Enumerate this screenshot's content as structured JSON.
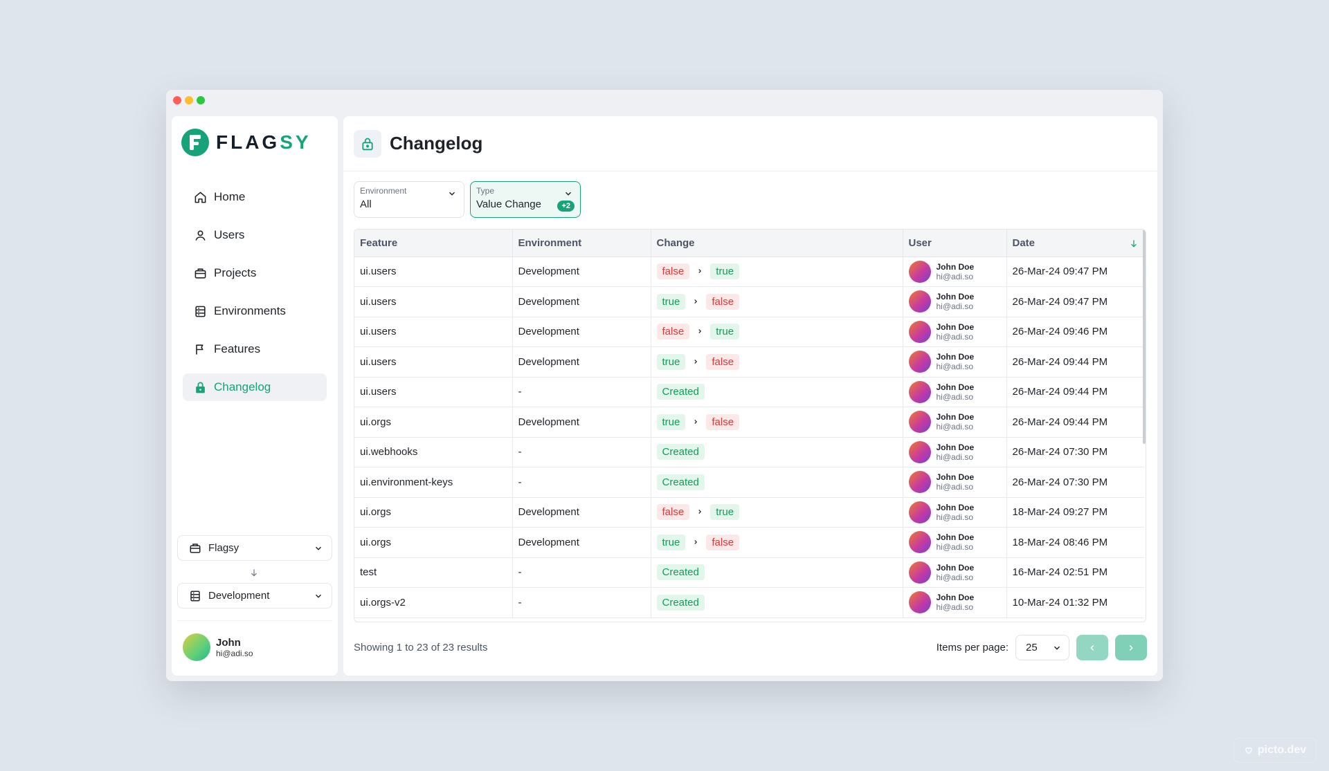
{
  "window": {
    "dots": [
      "#ff5f57",
      "#febc2e",
      "#28c840"
    ]
  },
  "brand": {
    "name_part1": "FLAG",
    "name_part2": "SY",
    "color": "#16a37a"
  },
  "sidebar": {
    "items": [
      {
        "label": "Home",
        "icon": "home-icon"
      },
      {
        "label": "Users",
        "icon": "user-icon"
      },
      {
        "label": "Projects",
        "icon": "briefcase-icon"
      },
      {
        "label": "Environments",
        "icon": "server-icon"
      },
      {
        "label": "Features",
        "icon": "flag-icon"
      },
      {
        "label": "Changelog",
        "icon": "lock-icon",
        "active": true
      }
    ],
    "project_selector": {
      "value": "Flagsy",
      "icon": "briefcase-icon"
    },
    "environment_selector": {
      "value": "Development",
      "icon": "server-icon"
    },
    "user": {
      "name": "John",
      "email": "hi@adi.so"
    }
  },
  "header": {
    "title": "Changelog",
    "icon": "lock-icon"
  },
  "filters": {
    "environment": {
      "label": "Environment",
      "value": "All"
    },
    "type": {
      "label": "Type",
      "value": "Value Change",
      "extra_count": "+2"
    }
  },
  "table": {
    "columns": [
      "Feature",
      "Environment",
      "Change",
      "User",
      "Date"
    ],
    "sort_column": "Date",
    "sort_direction": "desc",
    "rows": [
      {
        "feature": "ui.users",
        "environment": "Development",
        "change_type": "value",
        "from": "false",
        "to": "true",
        "user_name": "John Doe",
        "user_email": "hi@adi.so",
        "date": "26-Mar-24 09:47 PM"
      },
      {
        "feature": "ui.users",
        "environment": "Development",
        "change_type": "value",
        "from": "true",
        "to": "false",
        "user_name": "John Doe",
        "user_email": "hi@adi.so",
        "date": "26-Mar-24 09:47 PM"
      },
      {
        "feature": "ui.users",
        "environment": "Development",
        "change_type": "value",
        "from": "false",
        "to": "true",
        "user_name": "John Doe",
        "user_email": "hi@adi.so",
        "date": "26-Mar-24 09:46 PM"
      },
      {
        "feature": "ui.users",
        "environment": "Development",
        "change_type": "value",
        "from": "true",
        "to": "false",
        "user_name": "John Doe",
        "user_email": "hi@adi.so",
        "date": "26-Mar-24 09:44 PM"
      },
      {
        "feature": "ui.users",
        "environment": "-",
        "change_type": "created",
        "created_label": "Created",
        "user_name": "John Doe",
        "user_email": "hi@adi.so",
        "date": "26-Mar-24 09:44 PM"
      },
      {
        "feature": "ui.orgs",
        "environment": "Development",
        "change_type": "value",
        "from": "true",
        "to": "false",
        "user_name": "John Doe",
        "user_email": "hi@adi.so",
        "date": "26-Mar-24 09:44 PM"
      },
      {
        "feature": "ui.webhooks",
        "environment": "-",
        "change_type": "created",
        "created_label": "Created",
        "user_name": "John Doe",
        "user_email": "hi@adi.so",
        "date": "26-Mar-24 07:30 PM"
      },
      {
        "feature": "ui.environment-keys",
        "environment": "-",
        "change_type": "created",
        "created_label": "Created",
        "user_name": "John Doe",
        "user_email": "hi@adi.so",
        "date": "26-Mar-24 07:30 PM"
      },
      {
        "feature": "ui.orgs",
        "environment": "Development",
        "change_type": "value",
        "from": "false",
        "to": "true",
        "user_name": "John Doe",
        "user_email": "hi@adi.so",
        "date": "18-Mar-24 09:27 PM"
      },
      {
        "feature": "ui.orgs",
        "environment": "Development",
        "change_type": "value",
        "from": "true",
        "to": "false",
        "user_name": "John Doe",
        "user_email": "hi@adi.so",
        "date": "18-Mar-24 08:46 PM"
      },
      {
        "feature": "test",
        "environment": "-",
        "change_type": "created",
        "created_label": "Created",
        "user_name": "John Doe",
        "user_email": "hi@adi.so",
        "date": "16-Mar-24 02:51 PM"
      },
      {
        "feature": "ui.orgs-v2",
        "environment": "-",
        "change_type": "created",
        "created_label": "Created",
        "user_name": "John Doe",
        "user_email": "hi@adi.so",
        "date": "10-Mar-24 01:32 PM"
      }
    ]
  },
  "pagination": {
    "summary": "Showing 1 to 23 of 23 results",
    "items_per_page_label": "Items per page:",
    "items_per_page": "25"
  },
  "watermark": "picto.dev"
}
